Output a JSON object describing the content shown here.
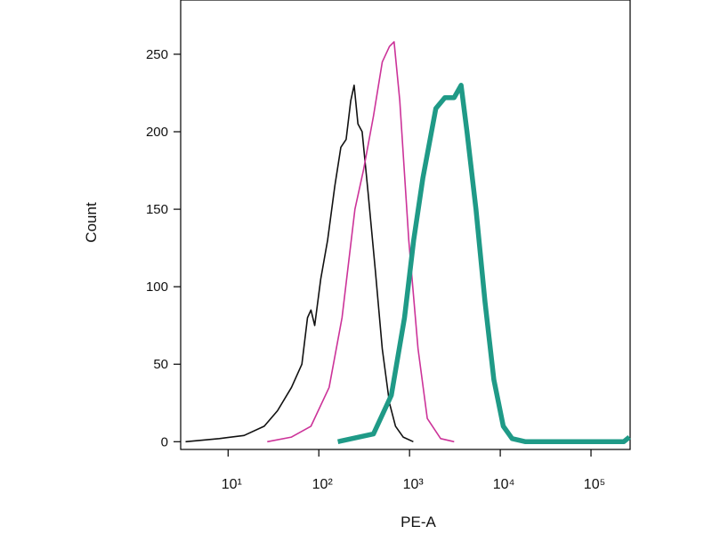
{
  "chart_data": {
    "type": "line",
    "x_label": "PE-A",
    "y_label": "Count",
    "xscale": "log",
    "xlim": [
      3,
      270000
    ],
    "ylim": [
      -5,
      285
    ],
    "xticks": [
      {
        "value": 10,
        "label": "10¹"
      },
      {
        "value": 100,
        "label": "10²"
      },
      {
        "value": 1000,
        "label": "10³"
      },
      {
        "value": 10000,
        "label": "10⁴"
      },
      {
        "value": 100000,
        "label": "10⁵"
      }
    ],
    "yticks": [
      0,
      50,
      100,
      150,
      200,
      250
    ],
    "series": [
      {
        "color": "#111111",
        "x": [
          3.4,
          8,
          15,
          25,
          35,
          50,
          65,
          75,
          82,
          90,
          105,
          125,
          150,
          175,
          200,
          225,
          245,
          270,
          300,
          350,
          420,
          500,
          600,
          700,
          850,
          1100
        ],
        "values": [
          0,
          2,
          4,
          10,
          20,
          35,
          50,
          80,
          85,
          75,
          105,
          130,
          165,
          190,
          195,
          220,
          230,
          205,
          200,
          160,
          110,
          60,
          25,
          10,
          3,
          0
        ]
      },
      {
        "color": "#cc3399",
        "x": [
          27,
          50,
          82,
          130,
          180,
          250,
          310,
          400,
          500,
          600,
          676,
          780,
          980,
          1240,
          1570,
          2200,
          3100
        ],
        "values": [
          0,
          3,
          10,
          35,
          80,
          150,
          175,
          210,
          245,
          255,
          258,
          220,
          130,
          60,
          15,
          2,
          0
        ]
      },
      {
        "color": "#1f9a87",
        "x": [
          162,
          400,
          630,
          880,
          1110,
          1400,
          1950,
          2450,
          3100,
          3700,
          4300,
          5400,
          6800,
          8500,
          10800,
          13500,
          19000,
          230000,
          265000
        ],
        "values": [
          0,
          5,
          30,
          80,
          130,
          170,
          215,
          222,
          222,
          230,
          200,
          150,
          90,
          40,
          10,
          2,
          0,
          0,
          3
        ]
      }
    ]
  }
}
